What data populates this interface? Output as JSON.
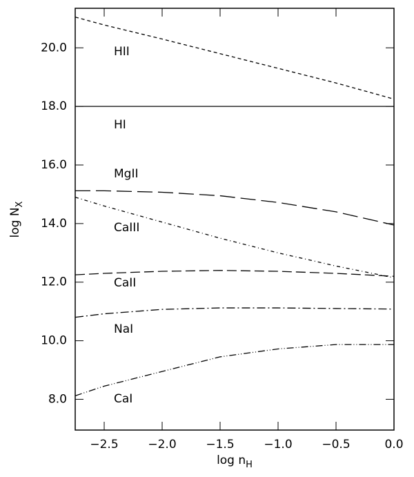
{
  "chart_data": {
    "type": "line",
    "xlabel": {
      "text": "log n",
      "sub": "H"
    },
    "ylabel": {
      "text": "log N",
      "sub": "X"
    },
    "xlim": [
      -2.75,
      0
    ],
    "ylim": [
      6.95,
      21.35
    ],
    "xticks": [
      {
        "value": -2.5,
        "label": "−2.5"
      },
      {
        "value": -2,
        "label": "−2.0"
      },
      {
        "value": -1.5,
        "label": "−1.5"
      },
      {
        "value": -1,
        "label": "−1.0"
      },
      {
        "value": -0.5,
        "label": "−0.5"
      },
      {
        "value": 0,
        "label": "0.0"
      }
    ],
    "yticks": [
      {
        "value": 8,
        "label": "8.0"
      },
      {
        "value": 10,
        "label": "10.0"
      },
      {
        "value": 12,
        "label": "12.0"
      },
      {
        "value": 14,
        "label": "14.0"
      },
      {
        "value": 16,
        "label": "16.0"
      },
      {
        "value": 18,
        "label": "18.0"
      },
      {
        "value": 20,
        "label": "20.0"
      }
    ],
    "x": [
      -2.75,
      -2.5,
      -2,
      -1.5,
      -1,
      -0.5,
      0
    ],
    "series": [
      {
        "name": "HII",
        "color": "#000000",
        "dash": "5,4",
        "values": [
          21.05,
          20.78,
          20.3,
          19.8,
          19.3,
          18.8,
          18.25
        ]
      },
      {
        "name": "HI",
        "color": "#000000",
        "dash": "none",
        "values": [
          18,
          18,
          18,
          18,
          18,
          18,
          18
        ]
      },
      {
        "name": "MgII",
        "color": "#000000",
        "dash": "22,8",
        "values": [
          15.12,
          15.12,
          15.07,
          14.95,
          14.72,
          14.4,
          13.95
        ]
      },
      {
        "name": "CaIII",
        "color": "#000000",
        "dash": "5,4,1,4",
        "values": [
          14.9,
          14.6,
          14.05,
          13.5,
          13.0,
          12.55,
          12.15
        ]
      },
      {
        "name": "CaII",
        "color": "#000000",
        "dash": "14,6",
        "values": [
          12.25,
          12.3,
          12.37,
          12.4,
          12.37,
          12.3,
          12.2
        ]
      },
      {
        "name": "NaI",
        "color": "#000000",
        "dash": "12,4,2,4",
        "values": [
          10.8,
          10.92,
          11.07,
          11.12,
          11.12,
          11.1,
          11.08
        ]
      },
      {
        "name": "CaI",
        "color": "#000000",
        "dash": "10,3,1,3,1,3",
        "values": [
          8.12,
          8.45,
          8.95,
          9.45,
          9.72,
          9.87,
          9.87
        ]
      }
    ]
  }
}
